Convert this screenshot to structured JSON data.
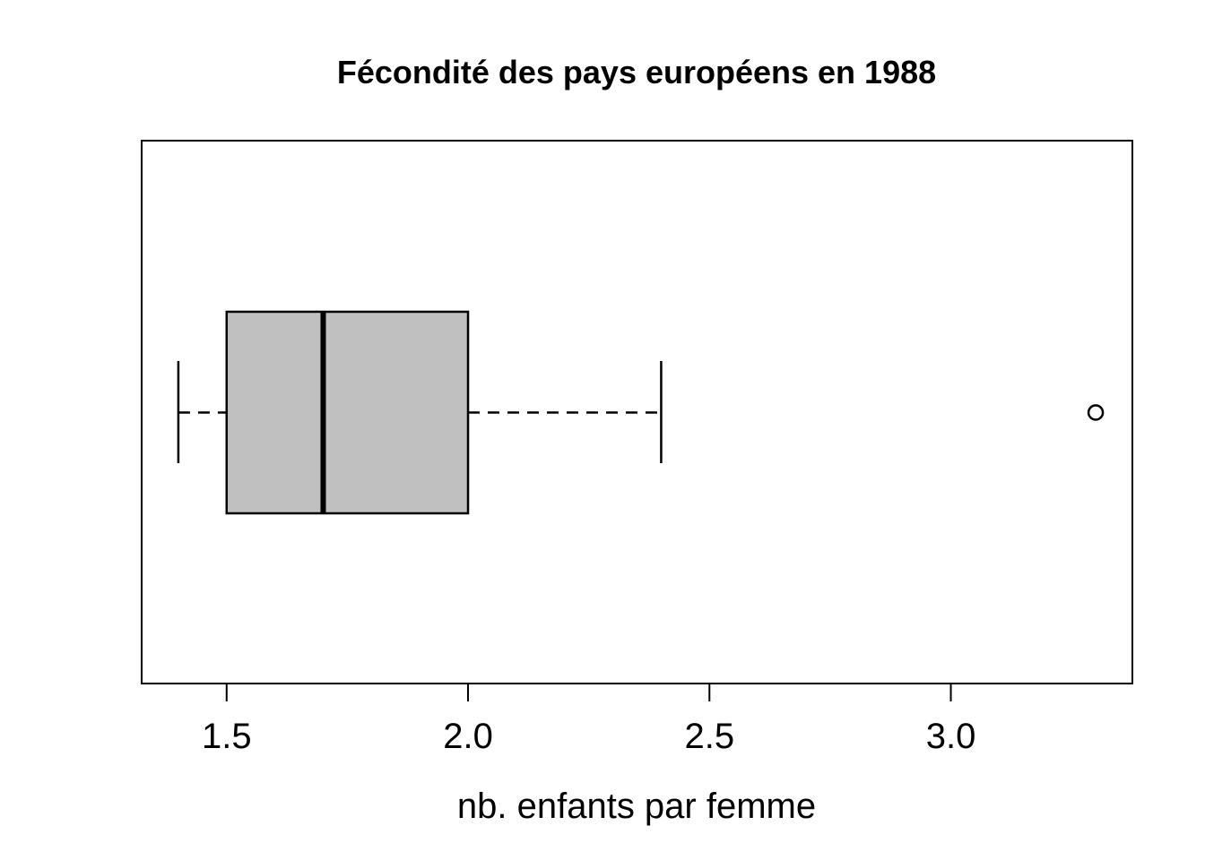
{
  "chart_data": {
    "type": "boxplot",
    "orientation": "horizontal",
    "title": "Fécondité des pays européens en 1988",
    "xlabel": "nb. enfants par femme",
    "ylabel": "",
    "stats": {
      "whisker_low": 1.4,
      "q1": 1.5,
      "median": 1.7,
      "q3": 2.0,
      "whisker_high": 2.4
    },
    "outliers": [
      3.3
    ],
    "x_ticks": [
      1.5,
      2.0,
      2.5,
      3.0
    ],
    "x_tick_labels": [
      "1.5",
      "2.0",
      "2.5",
      "3.0"
    ],
    "xlim": [
      1.324,
      3.376
    ],
    "grid": false,
    "legend": null,
    "colors": {
      "box_fill": "#c0c0c0",
      "line": "#000000",
      "background": "#ffffff"
    }
  }
}
